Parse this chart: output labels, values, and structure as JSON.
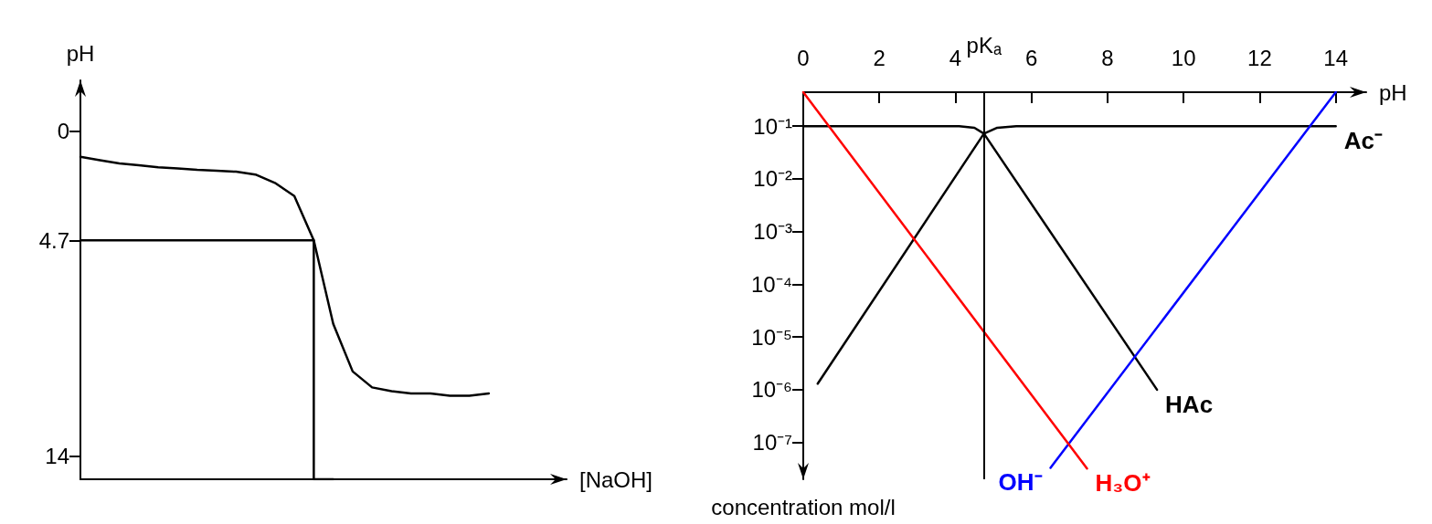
{
  "chart_data": [
    {
      "type": "line",
      "xlabel": "[NaOH]",
      "ylabel": "pH",
      "categories": [
        null,
        null,
        null,
        null,
        null,
        null,
        null,
        null,
        null,
        null,
        null,
        null,
        null,
        null,
        null,
        null,
        null,
        null,
        null,
        null,
        null,
        null,
        null,
        null,
        null,
        null
      ],
      "ylim": [
        15,
        -2.2
      ],
      "yticks": [
        0,
        4.7,
        14
      ],
      "tick_labels": "y",
      "marker": "none",
      "line_style": "solid",
      "series": [
        {
          "color": "#000000",
          "values": [
            1.1,
            1.24,
            1.38,
            1.46,
            1.55,
            1.6,
            1.66,
            1.7,
            1.74,
            1.86,
            2.22,
            2.79,
            4.7,
            8.3,
            10.35,
            11.04,
            11.2,
            11.3,
            11.3,
            11.4,
            11.4,
            11.3,
            null,
            null,
            null,
            null
          ]
        },
        {
          "type": "step",
          "color": "#000000",
          "values": [
            4.7,
            4.7,
            4.7,
            4.7,
            4.7,
            4.7,
            4.7,
            4.7,
            4.7,
            4.7,
            4.7,
            4.7,
            4.7,
            15,
            null,
            null,
            null,
            null,
            null,
            null,
            null,
            null,
            null,
            null,
            null,
            null
          ]
        }
      ]
    },
    {
      "type": "line",
      "xlabel": "pH",
      "ylabel": "concentration mol/l",
      "xlim": [
        0,
        14.8
      ],
      "ylim": [
        2e-08,
        0.44
      ],
      "log": "y",
      "marker": "none",
      "line_style": "solid",
      "xticks": [
        0,
        2,
        4,
        6,
        8,
        10,
        12,
        14
      ],
      "yticks": [
        {
          "value": 0.1,
          "label": "10⁻¹"
        },
        {
          "value": 0.01,
          "label": "10⁻²"
        },
        {
          "value": 0.001,
          "label": "10⁻³"
        },
        {
          "value": 0.0001,
          "label": "10⁻⁴"
        },
        {
          "value": 1e-05,
          "label": "10⁻⁵"
        },
        {
          "value": 1e-06,
          "label": "10⁻⁶"
        },
        {
          "value": 1e-07,
          "label": "10⁻⁷"
        }
      ],
      "ref_lines": [
        {
          "axis": "x",
          "value": 4.75,
          "label": "pKₐ",
          "color": "#000000"
        }
      ],
      "series": [
        {
          "name": "Ac⁻",
          "color": "#000000",
          "x": [
            0.38,
            4.75,
            5.1,
            5.6,
            14
          ],
          "values": [
            1.3e-06,
            0.072,
            0.093,
            0.1,
            0.1
          ]
        },
        {
          "name": "HAc",
          "color": "#000000",
          "x": [
            0,
            4.1,
            4.5,
            4.75,
            9.3
          ],
          "values": [
            0.1,
            0.1,
            0.093,
            0.072,
            1e-06
          ]
        },
        {
          "name": "OH⁻",
          "color": "#0000ff",
          "x": [
            14.0,
            6.5
          ],
          "values": [
            0.44,
            3.3e-08
          ]
        },
        {
          "name": "H₃O⁺",
          "color": "#ff0000",
          "x": [
            0,
            7.46
          ],
          "values": [
            0.44,
            3.2e-08
          ]
        }
      ]
    }
  ]
}
